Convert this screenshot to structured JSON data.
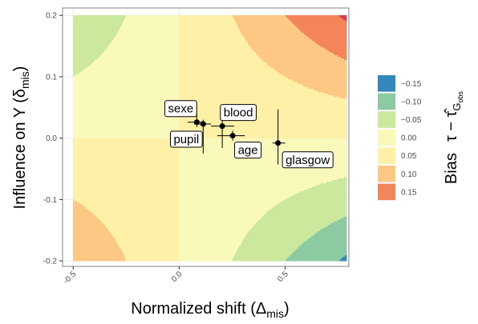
{
  "chart_data": {
    "type": "contour",
    "x_label": {
      "text": "Normalized shift (Δ",
      "subscript": "mis",
      "close": ")"
    },
    "y_label": {
      "text": "Influence on Y (δ",
      "subscript": "mis",
      "close": ")"
    },
    "legend_title": {
      "text": "Bias",
      "symbol": "τ − τ̂",
      "sub": "G",
      "subsub": "obs"
    },
    "xlim": [
      -0.55,
      0.8
    ],
    "ylim": [
      -0.209,
      0.212
    ],
    "xticks": [
      -0.5,
      {
        "value": 0,
        "label": "0.0"
      },
      0.5
    ],
    "yticks": [
      -0.2,
      -0.1,
      {
        "value": 0,
        "label": "0.0"
      },
      0.1,
      0.2
    ],
    "grid": true,
    "surface": {
      "x": [
        -0.5,
        0.79
      ],
      "y": [
        -0.2,
        0.2
      ],
      "z": [
        [
          0.1,
          -0.158
        ],
        [
          -0.1,
          0.158
        ]
      ]
    },
    "levels": [
      {
        "value": -0.15,
        "label": "−0.15",
        "color": "#3288bd"
      },
      {
        "value": -0.1,
        "label": "−0.10",
        "color": "#8ccaa2"
      },
      {
        "value": -0.05,
        "label": "−0.05",
        "color": "#cbe89c"
      },
      {
        "value": 0,
        "label": "0.00",
        "color": "#f8f9bb"
      },
      {
        "value": 0.05,
        "label": "0.05",
        "color": "#fef0a6"
      },
      {
        "value": 0.1,
        "label": "0.10",
        "color": "#fdc883"
      },
      {
        "value": 0.15,
        "label": "0.15",
        "color": "#f4855b"
      }
    ],
    "overflow_color": "#d53e4f",
    "points": {
      "labels": [
        "sexe",
        "pupil",
        "blood",
        "age",
        "glasgow"
      ],
      "x": [
        0.083,
        0.113,
        0.203,
        0.252,
        0.466
      ],
      "y": [
        0.026,
        0.023,
        0.0196,
        0.004,
        -0.008
      ],
      "x_low": [
        0.04,
        0.07,
        0.15,
        0.18,
        0.44
      ],
      "x_high": [
        0.12,
        0.15,
        0.26,
        0.31,
        0.5
      ],
      "y_low": [
        0.018,
        -0.025,
        -0.016,
        -0.004,
        -0.043
      ],
      "y_high": [
        0.04,
        0.03,
        0.033,
        0.012,
        0.047
      ]
    }
  }
}
